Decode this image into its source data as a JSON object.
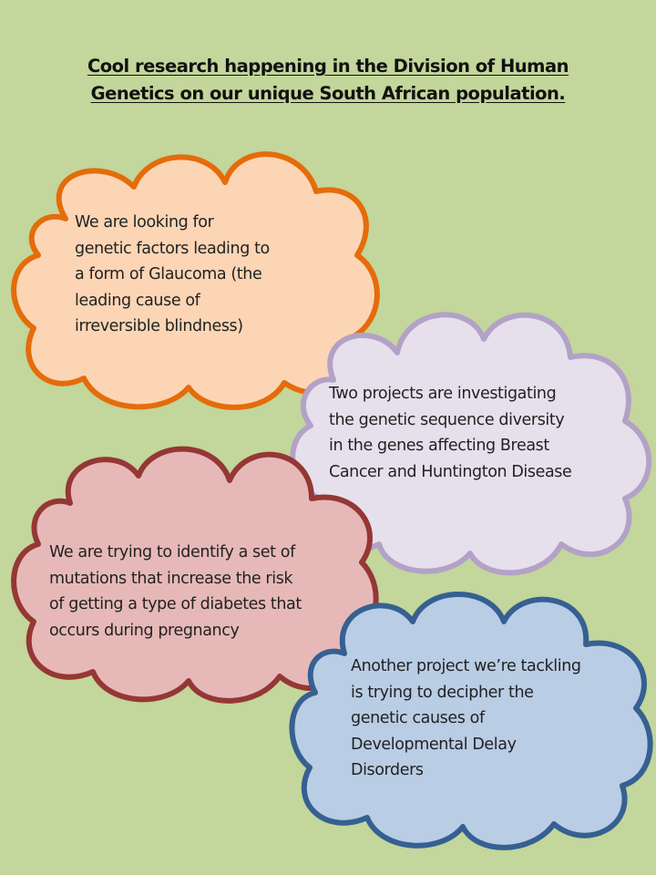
{
  "title": {
    "line1": "Cool research happening in the Division of Human",
    "line2": "Genetics on our unique South African population."
  },
  "clouds": [
    {
      "lines": [
        "We are looking for",
        "genetic factors leading to",
        "a form of Glaucoma (the",
        "leading cause of",
        "irreversible blindness)"
      ],
      "fill": "#fcd5b5",
      "stroke": "#e46c0a"
    },
    {
      "lines": [
        "Two projects are investigating",
        "the genetic sequence diversity",
        "in the genes affecting Breast",
        "Cancer and Huntington Disease"
      ],
      "fill": "#e6e0ec",
      "stroke": "#b3a2c7"
    },
    {
      "lines": [
        "We are trying to identify a set of",
        "mutations that increase the risk",
        "of getting a type of diabetes that",
        "occurs during pregnancy"
      ],
      "fill": "#e6b9b8",
      "stroke": "#953735"
    },
    {
      "lines": [
        "Another project we’re tackling",
        "is trying to decipher the",
        "genetic causes of",
        "Developmental Delay",
        "Disorders"
      ],
      "fill": "#b9cde5",
      "stroke": "#366092"
    }
  ]
}
